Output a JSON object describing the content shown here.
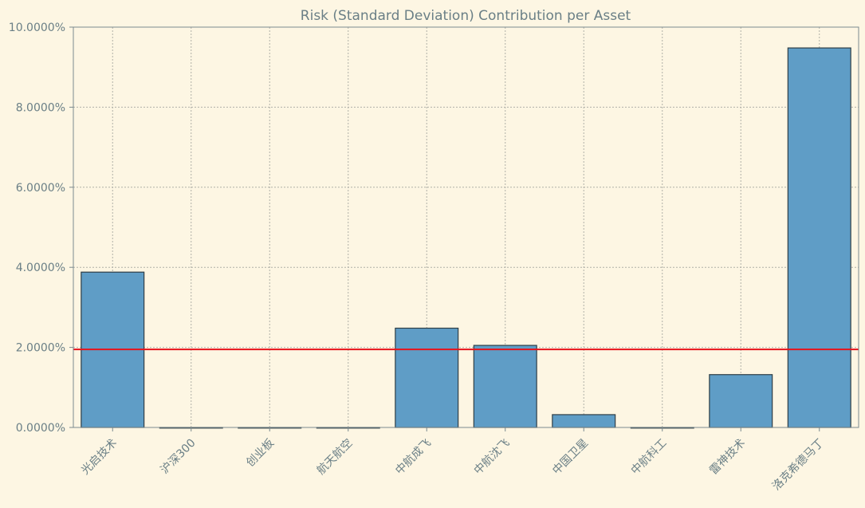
{
  "chart_data": {
    "type": "bar",
    "title": "Risk (Standard Deviation) Contribution per Asset",
    "xlabel": "",
    "ylabel": "",
    "categories": [
      "光启技术",
      "沪深300",
      "创业板",
      "航天航空",
      "中航成飞",
      "中航沈飞",
      "中国卫星",
      "中航科工",
      "雷神技术",
      "洛克希德马丁"
    ],
    "values": [
      3.88,
      0.0,
      0.0,
      0.0,
      2.48,
      2.05,
      0.32,
      0.0,
      1.32,
      9.48
    ],
    "ylim": [
      0,
      10
    ],
    "yticks": [
      0,
      2,
      4,
      6,
      8,
      10
    ],
    "ytick_labels": [
      "0.0000%",
      "2.0000%",
      "4.0000%",
      "6.0000%",
      "8.0000%",
      "10.0000%"
    ],
    "reference_line": {
      "value": 1.95,
      "color": "#e8131b"
    },
    "grid": true,
    "colors": {
      "background": "#fdf6e3",
      "bar_fill": "#5f9dc6",
      "bar_edge": "#2f3e46",
      "axis": "#7a8a8f",
      "grid": "#b0b0a8",
      "text": "#6a7f86"
    }
  }
}
